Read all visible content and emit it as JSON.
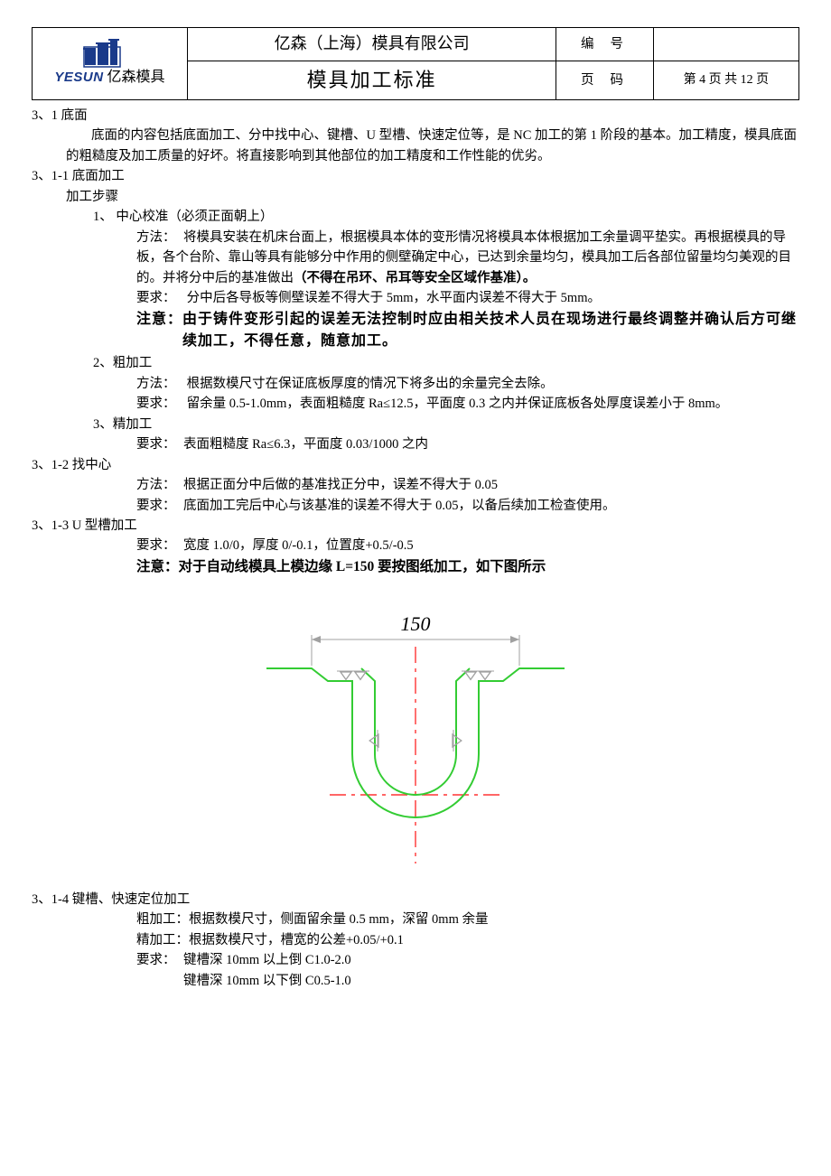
{
  "header": {
    "logo_en": "YESUN",
    "logo_cn": "亿森模具",
    "company": "亿森（上海）模具有限公司",
    "doc_title": "模具加工标准",
    "field_num_label": "编号",
    "field_num_value": "",
    "field_page_label": "页码",
    "field_page_value": "第 4 页  共 12 页"
  },
  "s31": {
    "heading": "3、1 底面",
    "intro": "底面的内容包括底面加工、分中找中心、键槽、U 型槽、快速定位等，是 NC 加工的第 1 阶段的基本。加工精度，模具底面的粗糙度及加工质量的好坏。将直接影响到其他部位的加工精度和工作性能的优劣。"
  },
  "s311": {
    "heading": "3、1-1 底面加工",
    "steps_label": "加工步骤",
    "step1": {
      "title": "1、 中心校准（必须正面朝上）",
      "method_label": "方法：",
      "method": "将模具安装在机床台面上，根据模具本体的变形情况将模具本体根据加工余量调平垫实。再根据模具的导板，各个台阶、靠山等具有能够分中作用的侧壁确定中心，已达到余量均匀，模具加工后各部位留量均匀美观的目的。并将分中后的基准做出",
      "method_bold_tail": "（不得在吊环、吊耳等安全区域作基准）。",
      "req_label": "要求：",
      "req": " 分中后各导板等侧壁误差不得大于 5mm，水平面内误差不得大于 5mm。",
      "note_label": "注意：",
      "note": "由于铸件变形引起的误差无法控制时应由相关技术人员在现场进行最终调整并确认后方可继续加工，不得任意，随意加工。"
    },
    "step2": {
      "title": "2、粗加工",
      "method_label": "方法：",
      "method": " 根据数模尺寸在保证底板厚度的情况下将多出的余量完全去除。",
      "req_label": "要求：",
      "req": " 留余量 0.5-1.0mm，表面粗糙度 Ra≤12.5，平面度 0.3 之内并保证底板各处厚度误差小于 8mm。"
    },
    "step3": {
      "title": "3、精加工",
      "req_label": "要求：",
      "req": "表面粗糙度 Ra≤6.3，平面度 0.03/1000 之内"
    }
  },
  "s312": {
    "heading": "3、1-2 找中心",
    "method_label": "方法：",
    "method": "根据正面分中后做的基准找正分中，误差不得大于 0.05",
    "req_label": "要求：",
    "req": "底面加工完后中心与该基准的误差不得大于 0.05，以备后续加工检查使用。"
  },
  "s313": {
    "heading": "3、1-3  U 型槽加工",
    "req_label": "要求：",
    "req": "宽度 1.0/0，厚度 0/-0.1，位置度+0.5/-0.5",
    "note_label": "注意：",
    "note": "对于自动线模具上模边缘 L=150 要按图纸加工，如下图所示"
  },
  "diagram": {
    "dim_value": "150",
    "colors": {
      "profile": "#33cc33",
      "center": "#ff3333",
      "annotation": "#a0a0a0",
      "text": "#000000"
    }
  },
  "s314": {
    "heading": "3、1-4  键槽、快速定位加工",
    "rough_label": "粗加工：",
    "rough": "根据数模尺寸，侧面留余量 0.5 mm，深留 0mm 余量",
    "fine_label": "精加工：",
    "fine": "根据数模尺寸，槽宽的公差+0.05/+0.1",
    "req_label": "要求：",
    "req1": "键槽深 10mm 以上倒 C1.0-2.0",
    "req2": "键槽深 10mm 以下倒 C0.5-1.0"
  }
}
